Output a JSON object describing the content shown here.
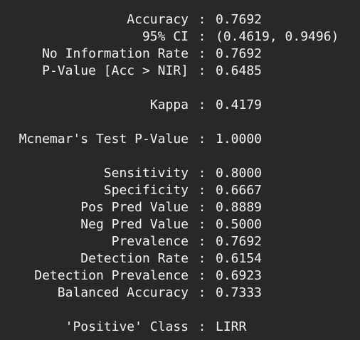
{
  "separator": ":",
  "stats": {
    "accuracy": {
      "label": "Accuracy",
      "value": "0.7692"
    },
    "ci95": {
      "label": "95% CI",
      "value": "(0.4619, 0.9496)"
    },
    "nir": {
      "label": "No Information Rate",
      "value": "0.7692"
    },
    "pvalue_acc_nir": {
      "label": "P-Value [Acc > NIR]",
      "value": "0.6485"
    },
    "kappa": {
      "label": "Kappa",
      "value": "0.4179"
    },
    "mcnemar": {
      "label": "Mcnemar's Test P-Value",
      "value": "1.0000"
    },
    "sensitivity": {
      "label": "Sensitivity",
      "value": "0.8000"
    },
    "specificity": {
      "label": "Specificity",
      "value": "0.6667"
    },
    "pos_pred": {
      "label": "Pos Pred Value",
      "value": "0.8889"
    },
    "neg_pred": {
      "label": "Neg Pred Value",
      "value": "0.5000"
    },
    "prevalence": {
      "label": "Prevalence",
      "value": "0.7692"
    },
    "detection_rate": {
      "label": "Detection Rate",
      "value": "0.6154"
    },
    "detection_prevalence": {
      "label": "Detection Prevalence",
      "value": "0.6923"
    },
    "balanced_accuracy": {
      "label": "Balanced Accuracy",
      "value": "0.7333"
    },
    "positive_class": {
      "label": "'Positive' Class",
      "value": "LIRR"
    }
  }
}
